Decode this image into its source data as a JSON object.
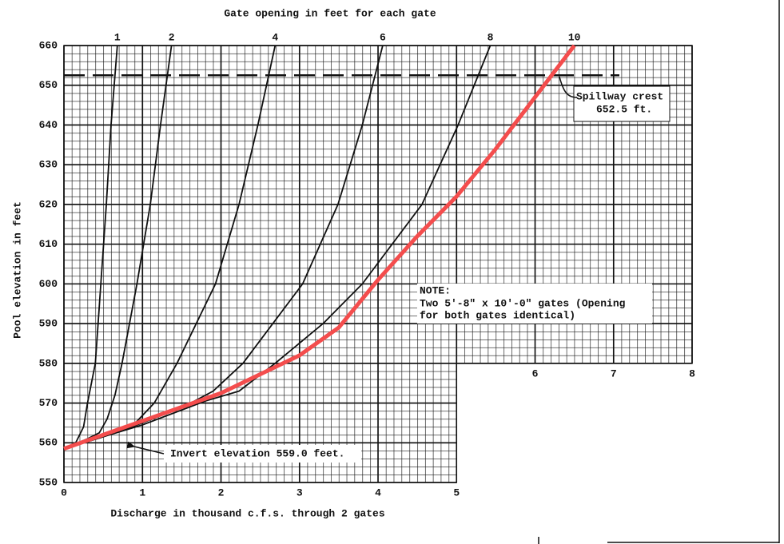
{
  "chart_data": {
    "type": "line",
    "title": "Gate opening in feet for each gate",
    "x_label": "Discharge in thousand c.f.s. through 2 gates",
    "y_label": "Pool elevation in feet",
    "xlim": [
      0,
      8
    ],
    "ylim": [
      550,
      660
    ],
    "xticks": [
      0,
      1,
      2,
      3,
      4,
      5,
      6,
      7,
      8
    ],
    "yticks": [
      550,
      560,
      570,
      580,
      590,
      600,
      610,
      620,
      630,
      640,
      650,
      660
    ],
    "grid": true,
    "blank_corner": {
      "xlim": [
        5,
        8
      ],
      "ylim": [
        550,
        580
      ]
    },
    "series": [
      {
        "name": "1",
        "color": "#111111",
        "x": [
          0,
          0.15,
          0.25,
          0.3,
          0.4,
          0.47,
          0.54,
          0.6,
          0.68
        ],
        "values": [
          558.5,
          560,
          564,
          570,
          580,
          600,
          620,
          640,
          660
        ]
      },
      {
        "name": "2",
        "color": "#111111",
        "x": [
          0,
          0.3,
          0.45,
          0.55,
          0.65,
          0.74,
          0.93,
          1.1,
          1.23,
          1.37
        ],
        "values": [
          558.5,
          561,
          562.5,
          566,
          572,
          580,
          600,
          620,
          640,
          660
        ]
      },
      {
        "name": "4",
        "color": "#111111",
        "x": [
          0,
          0.5,
          0.91,
          1.15,
          1.44,
          1.93,
          2.23,
          2.47,
          2.69
        ],
        "values": [
          558.5,
          561.5,
          565,
          570,
          580,
          600,
          620,
          640,
          660
        ]
      },
      {
        "name": "6",
        "color": "#111111",
        "x": [
          0,
          0.8,
          1.52,
          1.9,
          2.28,
          3.04,
          3.49,
          3.8,
          4.06
        ],
        "values": [
          558.5,
          563.5,
          569,
          573,
          580,
          600,
          620,
          640,
          660
        ]
      },
      {
        "name": "8",
        "color": "#111111",
        "x": [
          0,
          1,
          1.8,
          2.23,
          2.69,
          3.3,
          3.8,
          4.56,
          5.02,
          5.43
        ],
        "values": [
          558.5,
          564.5,
          570.5,
          573,
          580,
          590,
          600,
          620,
          640,
          660
        ]
      },
      {
        "name": "10",
        "color": "#f44d4d",
        "x": [
          0,
          1,
          2,
          3,
          3.5,
          4,
          4.5,
          5,
          5.5,
          6,
          6.5
        ],
        "values": [
          558.5,
          565.5,
          572.5,
          582,
          589,
          601,
          612,
          622,
          634,
          647,
          660
        ]
      }
    ],
    "spillway_crest": {
      "text": [
        "Spillway crest",
        "652.5 ft."
      ],
      "value": 652.5
    },
    "invert_note": "Invert elevation 559.0 feet.",
    "note": [
      "NOTE:",
      "Two 5'-8\" x 10'-0\" gates (Opening",
      "for both gates identical)"
    ]
  }
}
